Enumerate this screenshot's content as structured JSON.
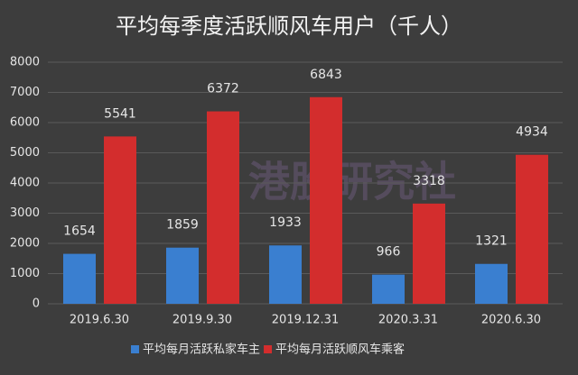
{
  "chart_data": {
    "type": "bar",
    "title": "平均每季度活跃顺风车用户（千人）",
    "watermark": "港股研究社",
    "categories": [
      "2019.6.30",
      "2019.9.30",
      "2019.12.31",
      "2020.3.31",
      "2020.6.30"
    ],
    "series": [
      {
        "name": "平均每月活跃私家车主",
        "color": "#3a7fd0",
        "values": [
          1654,
          1859,
          1933,
          966,
          1321
        ]
      },
      {
        "name": "平均每月活跃顺风车乘客",
        "color": "#d32d2d",
        "values": [
          5541,
          6372,
          6843,
          3318,
          4934
        ]
      }
    ],
    "ylim": [
      0,
      8000
    ],
    "yticks": [
      0,
      1000,
      2000,
      3000,
      4000,
      5000,
      6000,
      7000,
      8000
    ],
    "grid": true,
    "legend": "bottom"
  }
}
